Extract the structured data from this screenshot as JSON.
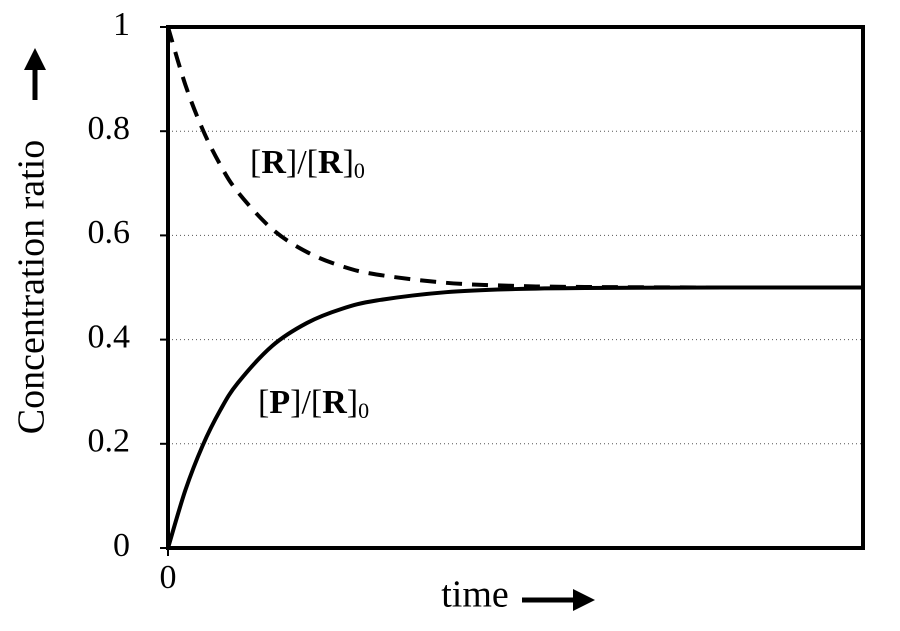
{
  "chart_data": {
    "type": "line",
    "x_label": "time",
    "y_label": "Concentration ratio",
    "x": [
      0,
      0.25,
      0.5,
      0.75,
      1,
      1.5,
      2,
      2.5,
      3,
      4,
      5,
      6,
      8,
      10
    ],
    "series": [
      {
        "name": "[R]/[R]0",
        "color": "#000000",
        "linestyle": "dashed",
        "values": [
          1,
          0.889,
          0.803,
          0.736,
          0.684,
          0.612,
          0.568,
          0.541,
          0.525,
          0.509,
          0.503,
          0.501,
          0.5,
          0.5
        ]
      },
      {
        "name": "[P]/[R]0",
        "color": "#000000",
        "linestyle": "solid",
        "values": [
          0,
          0.111,
          0.197,
          0.264,
          0.316,
          0.388,
          0.432,
          0.459,
          0.475,
          0.491,
          0.497,
          0.499,
          0.5,
          0.5
        ]
      }
    ],
    "xlim": [
      0,
      10
    ],
    "xticks": [
      0
    ],
    "ylim": [
      0,
      1
    ],
    "yticks": [
      0,
      0.2,
      0.4,
      0.6,
      0.8,
      1
    ],
    "grid": true
  }
}
